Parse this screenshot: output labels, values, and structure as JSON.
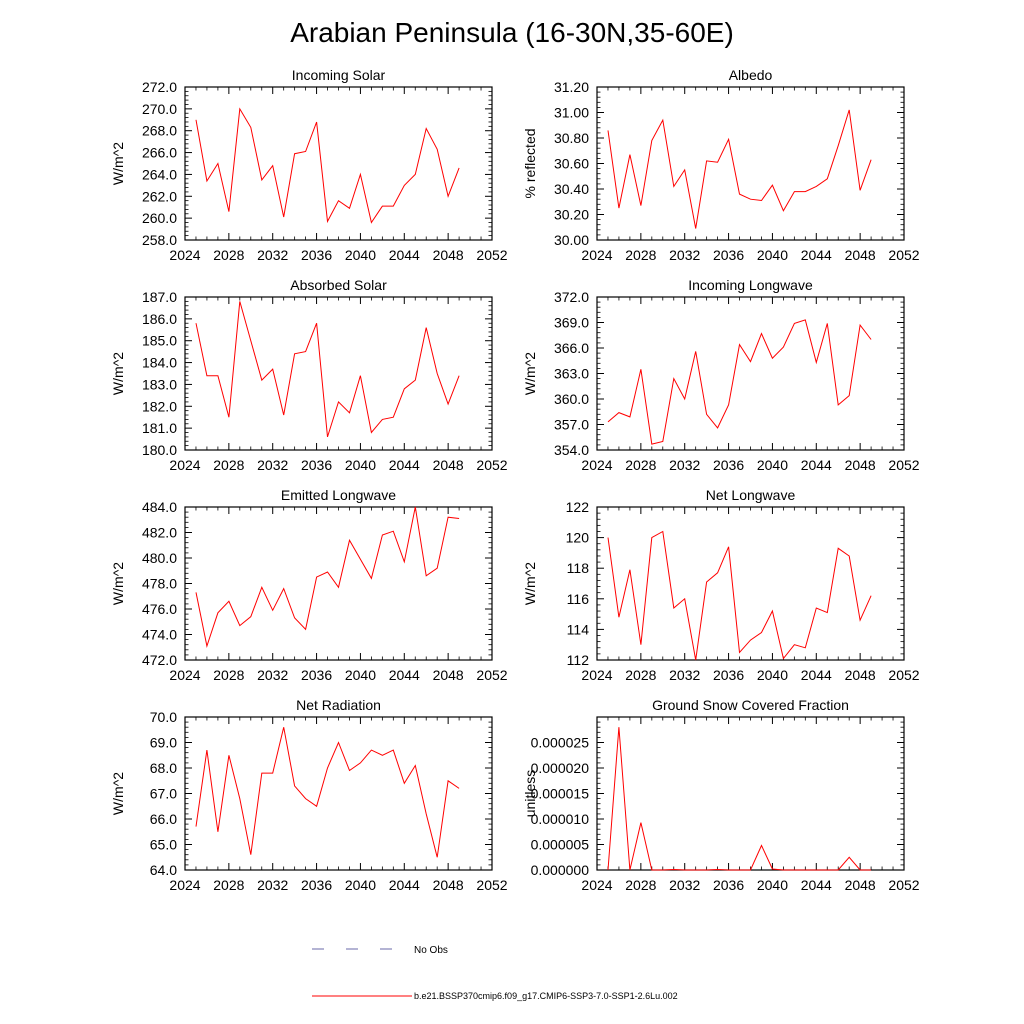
{
  "title": "Arabian Peninsula (16-30N,35-60E)",
  "colors": {
    "model": "#ff0000",
    "obs": "#6a6aa8",
    "axis": "#000000"
  },
  "legend": {
    "obs_label": "No Obs",
    "model_label": "b.e21.BSSP370cmip6.f09_g17.CMIP6-SSP3-7.0-SSP1-2.6Lu.002"
  },
  "chart_data": [
    {
      "type": "line",
      "title": "Incoming Solar",
      "ylabel": "W/m^2",
      "xlim": [
        2024,
        2052
      ],
      "ylim": [
        258,
        272
      ],
      "xticks": [
        2024,
        2028,
        2032,
        2036,
        2040,
        2044,
        2048,
        2052
      ],
      "yticks": [
        258,
        260,
        262,
        264,
        266,
        268,
        270,
        272
      ],
      "ytick_labels": [
        "258.0",
        "260.0",
        "262.0",
        "264.0",
        "266.0",
        "268.0",
        "270.0",
        "272.0"
      ],
      "x": [
        2025,
        2026,
        2027,
        2028,
        2029,
        2030,
        2031,
        2032,
        2033,
        2034,
        2035,
        2036,
        2037,
        2038,
        2039,
        2040,
        2041,
        2042,
        2043,
        2044,
        2045,
        2046,
        2047,
        2048,
        2049
      ],
      "values": [
        269.0,
        263.4,
        265.0,
        260.6,
        270.0,
        268.3,
        263.5,
        264.8,
        260.1,
        265.9,
        266.1,
        268.8,
        259.7,
        261.6,
        260.9,
        264.0,
        259.6,
        261.1,
        261.1,
        263.0,
        264.0,
        268.2,
        266.3,
        262.0,
        264.6
      ]
    },
    {
      "type": "line",
      "title": "Albedo",
      "ylabel": "% reflected",
      "xlim": [
        2024,
        2052
      ],
      "ylim": [
        30.0,
        31.2
      ],
      "xticks": [
        2024,
        2028,
        2032,
        2036,
        2040,
        2044,
        2048,
        2052
      ],
      "yticks": [
        30.0,
        30.2,
        30.4,
        30.6,
        30.8,
        31.0,
        31.2
      ],
      "ytick_labels": [
        "30.00",
        "30.20",
        "30.40",
        "30.60",
        "30.80",
        "31.00",
        "31.20"
      ],
      "x": [
        2025,
        2026,
        2027,
        2028,
        2029,
        2030,
        2031,
        2032,
        2033,
        2034,
        2035,
        2036,
        2037,
        2038,
        2039,
        2040,
        2041,
        2042,
        2043,
        2044,
        2045,
        2046,
        2047,
        2048,
        2049
      ],
      "values": [
        30.86,
        30.25,
        30.67,
        30.27,
        30.78,
        30.94,
        30.42,
        30.55,
        30.09,
        30.62,
        30.61,
        30.79,
        30.36,
        30.32,
        30.31,
        30.43,
        30.23,
        30.38,
        30.38,
        30.42,
        30.48,
        30.74,
        31.02,
        30.39,
        30.63
      ]
    },
    {
      "type": "line",
      "title": "Absorbed Solar",
      "ylabel": "W/m^2",
      "xlim": [
        2024,
        2052
      ],
      "ylim": [
        180,
        187
      ],
      "xticks": [
        2024,
        2028,
        2032,
        2036,
        2040,
        2044,
        2048,
        2052
      ],
      "yticks": [
        180,
        181,
        182,
        183,
        184,
        185,
        186,
        187
      ],
      "ytick_labels": [
        "180.0",
        "181.0",
        "182.0",
        "183.0",
        "184.0",
        "185.0",
        "186.0",
        "187.0"
      ],
      "x": [
        2025,
        2026,
        2027,
        2028,
        2029,
        2030,
        2031,
        2032,
        2033,
        2034,
        2035,
        2036,
        2037,
        2038,
        2039,
        2040,
        2041,
        2042,
        2043,
        2044,
        2045,
        2046,
        2047,
        2048,
        2049
      ],
      "values": [
        185.8,
        183.4,
        183.4,
        181.5,
        186.8,
        185.0,
        183.2,
        183.7,
        181.6,
        184.4,
        184.5,
        185.8,
        180.6,
        182.2,
        181.7,
        183.4,
        180.8,
        181.4,
        181.5,
        182.8,
        183.2,
        185.6,
        183.5,
        182.1,
        183.4
      ]
    },
    {
      "type": "line",
      "title": "Incoming Longwave",
      "ylabel": "W/m^2",
      "xlim": [
        2024,
        2052
      ],
      "ylim": [
        354,
        372
      ],
      "xticks": [
        2024,
        2028,
        2032,
        2036,
        2040,
        2044,
        2048,
        2052
      ],
      "yticks": [
        354,
        357,
        360,
        363,
        366,
        369,
        372
      ],
      "ytick_labels": [
        "354.0",
        "357.0",
        "360.0",
        "363.0",
        "366.0",
        "369.0",
        "372.0"
      ],
      "x": [
        2025,
        2026,
        2027,
        2028,
        2029,
        2030,
        2031,
        2032,
        2033,
        2034,
        2035,
        2036,
        2037,
        2038,
        2039,
        2040,
        2041,
        2042,
        2043,
        2044,
        2045,
        2046,
        2047,
        2048,
        2049
      ],
      "values": [
        357.3,
        358.4,
        357.9,
        363.5,
        354.7,
        355.0,
        362.4,
        360.0,
        365.6,
        358.2,
        356.6,
        359.3,
        366.4,
        364.4,
        367.7,
        364.8,
        366.1,
        368.9,
        369.3,
        364.3,
        368.9,
        359.3,
        360.4,
        368.7,
        367.0
      ]
    },
    {
      "type": "line",
      "title": "Emitted Longwave",
      "ylabel": "W/m^2",
      "xlim": [
        2024,
        2052
      ],
      "ylim": [
        472,
        484
      ],
      "xticks": [
        2024,
        2028,
        2032,
        2036,
        2040,
        2044,
        2048,
        2052
      ],
      "yticks": [
        472,
        474,
        476,
        478,
        480,
        482,
        484
      ],
      "ytick_labels": [
        "472.0",
        "474.0",
        "476.0",
        "478.0",
        "480.0",
        "482.0",
        "484.0"
      ],
      "x": [
        2025,
        2026,
        2027,
        2028,
        2029,
        2030,
        2031,
        2032,
        2033,
        2034,
        2035,
        2036,
        2037,
        2038,
        2039,
        2040,
        2041,
        2042,
        2043,
        2044,
        2045,
        2046,
        2047,
        2048,
        2049
      ],
      "values": [
        477.3,
        473.1,
        475.7,
        476.6,
        474.7,
        475.4,
        477.7,
        475.9,
        477.6,
        475.3,
        474.4,
        478.5,
        478.9,
        477.7,
        481.4,
        479.9,
        478.4,
        481.8,
        482.1,
        479.7,
        484.0,
        478.6,
        479.2,
        483.2,
        483.1
      ]
    },
    {
      "type": "line",
      "title": "Net Longwave",
      "ylabel": "W/m^2",
      "xlim": [
        2024,
        2052
      ],
      "ylim": [
        112,
        122
      ],
      "xticks": [
        2024,
        2028,
        2032,
        2036,
        2040,
        2044,
        2048,
        2052
      ],
      "yticks": [
        112,
        114,
        116,
        118,
        120,
        122
      ],
      "ytick_labels": [
        "112",
        "114",
        "116",
        "118",
        "120",
        "122"
      ],
      "x": [
        2025,
        2026,
        2027,
        2028,
        2029,
        2030,
        2031,
        2032,
        2033,
        2034,
        2035,
        2036,
        2037,
        2038,
        2039,
        2040,
        2041,
        2042,
        2043,
        2044,
        2045,
        2046,
        2047,
        2048,
        2049
      ],
      "values": [
        120.0,
        114.8,
        117.9,
        113.0,
        120.0,
        120.4,
        115.4,
        116.0,
        112.0,
        117.1,
        117.7,
        119.4,
        112.5,
        113.3,
        113.8,
        115.2,
        112.1,
        113.0,
        112.8,
        115.4,
        115.1,
        119.3,
        118.8,
        114.6,
        116.2
      ]
    },
    {
      "type": "line",
      "title": "Net Radiation",
      "ylabel": "W/m^2",
      "xlim": [
        2024,
        2052
      ],
      "ylim": [
        64,
        70
      ],
      "xticks": [
        2024,
        2028,
        2032,
        2036,
        2040,
        2044,
        2048,
        2052
      ],
      "yticks": [
        64,
        65,
        66,
        67,
        68,
        69,
        70
      ],
      "ytick_labels": [
        "64.0",
        "65.0",
        "66.0",
        "67.0",
        "68.0",
        "69.0",
        "70.0"
      ],
      "x": [
        2025,
        2026,
        2027,
        2028,
        2029,
        2030,
        2031,
        2032,
        2033,
        2034,
        2035,
        2036,
        2037,
        2038,
        2039,
        2040,
        2041,
        2042,
        2043,
        2044,
        2045,
        2046,
        2047,
        2048,
        2049
      ],
      "values": [
        65.7,
        68.7,
        65.5,
        68.5,
        66.8,
        64.6,
        67.8,
        67.8,
        69.6,
        67.3,
        66.8,
        66.5,
        68.0,
        69.0,
        67.9,
        68.2,
        68.7,
        68.5,
        68.7,
        67.4,
        68.1,
        66.2,
        64.5,
        67.5,
        67.2
      ]
    },
    {
      "type": "line",
      "title": "Ground Snow Covered Fraction",
      "ylabel": "unitless",
      "xlim": [
        2024,
        2052
      ],
      "ylim": [
        0,
        3e-05
      ],
      "xticks": [
        2024,
        2028,
        2032,
        2036,
        2040,
        2044,
        2048,
        2052
      ],
      "yticks": [
        0,
        5e-06,
        1e-05,
        1.5e-05,
        2e-05,
        2.5e-05
      ],
      "ytick_labels": [
        "0.000000",
        "0.000005",
        "0.000010",
        "0.000015",
        "0.000020",
        "0.000025"
      ],
      "x": [
        2025,
        2026,
        2027,
        2028,
        2029,
        2030,
        2031,
        2032,
        2033,
        2034,
        2035,
        2036,
        2037,
        2038,
        2039,
        2040,
        2041,
        2042,
        2043,
        2044,
        2045,
        2046,
        2047,
        2048,
        2049
      ],
      "values": [
        0.0,
        2.8e-05,
        0.0,
        9.3e-06,
        0.0,
        0.0,
        1e-07,
        0.0,
        0.0,
        0.0,
        1e-07,
        0.0,
        0.0,
        0.0,
        4.8e-06,
        2e-07,
        0.0,
        0.0,
        0.0,
        0.0,
        0.0,
        0.0,
        2.5e-06,
        0.0,
        0.0
      ]
    }
  ]
}
